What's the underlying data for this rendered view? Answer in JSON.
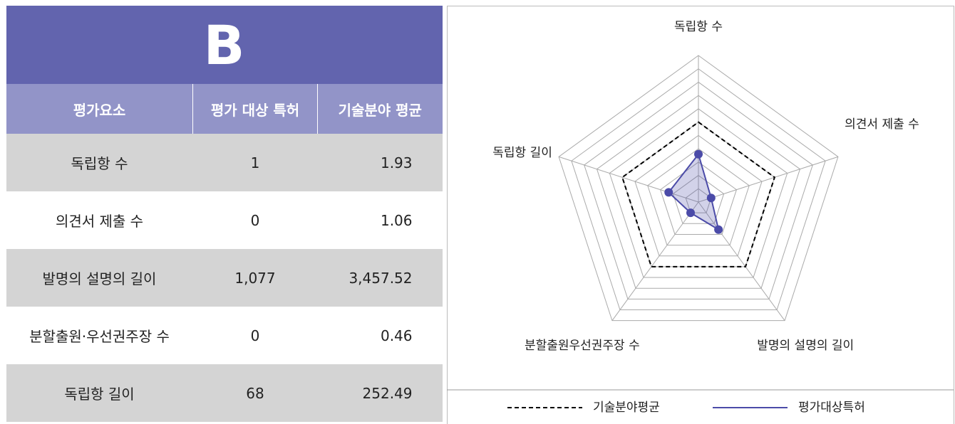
{
  "table": {
    "title": "B",
    "header": [
      "평가요소",
      "평가 대상 특허",
      "기술분야 평균"
    ],
    "rows": [
      [
        "독립항 수",
        "1",
        "1.93"
      ],
      [
        "의견서 제출 수",
        "0",
        "1.06"
      ],
      [
        "발명의 설명의 길이",
        "1,077",
        "3,457.52"
      ],
      [
        "분할출원·우선권주장 수",
        "0",
        "0.46"
      ],
      [
        "독립항 길이",
        "68",
        "252.49"
      ]
    ]
  },
  "chart_data": {
    "type": "radar",
    "categories": [
      "독립항 수",
      "의견서 제출 수",
      "발명의 설명의 길이",
      "분할출원우선권주장 수",
      "독립항 길이"
    ],
    "rlim": [
      -0.2,
      2.0
    ],
    "rticks": [
      -0.2,
      0,
      0.2,
      0.4,
      0.6,
      0.8,
      1,
      1.2,
      1.4,
      1.6,
      1.8,
      2.0
    ],
    "grid": true,
    "series": [
      {
        "name": "기술분야평균",
        "color": "#000000",
        "dash": true,
        "values": [
          1,
          1,
          1,
          1,
          1
        ]
      },
      {
        "name": "평가대상특허",
        "color": "#4b4ba8",
        "dash": false,
        "values": [
          0.518,
          0,
          0.311,
          0,
          0.269
        ]
      }
    ]
  }
}
